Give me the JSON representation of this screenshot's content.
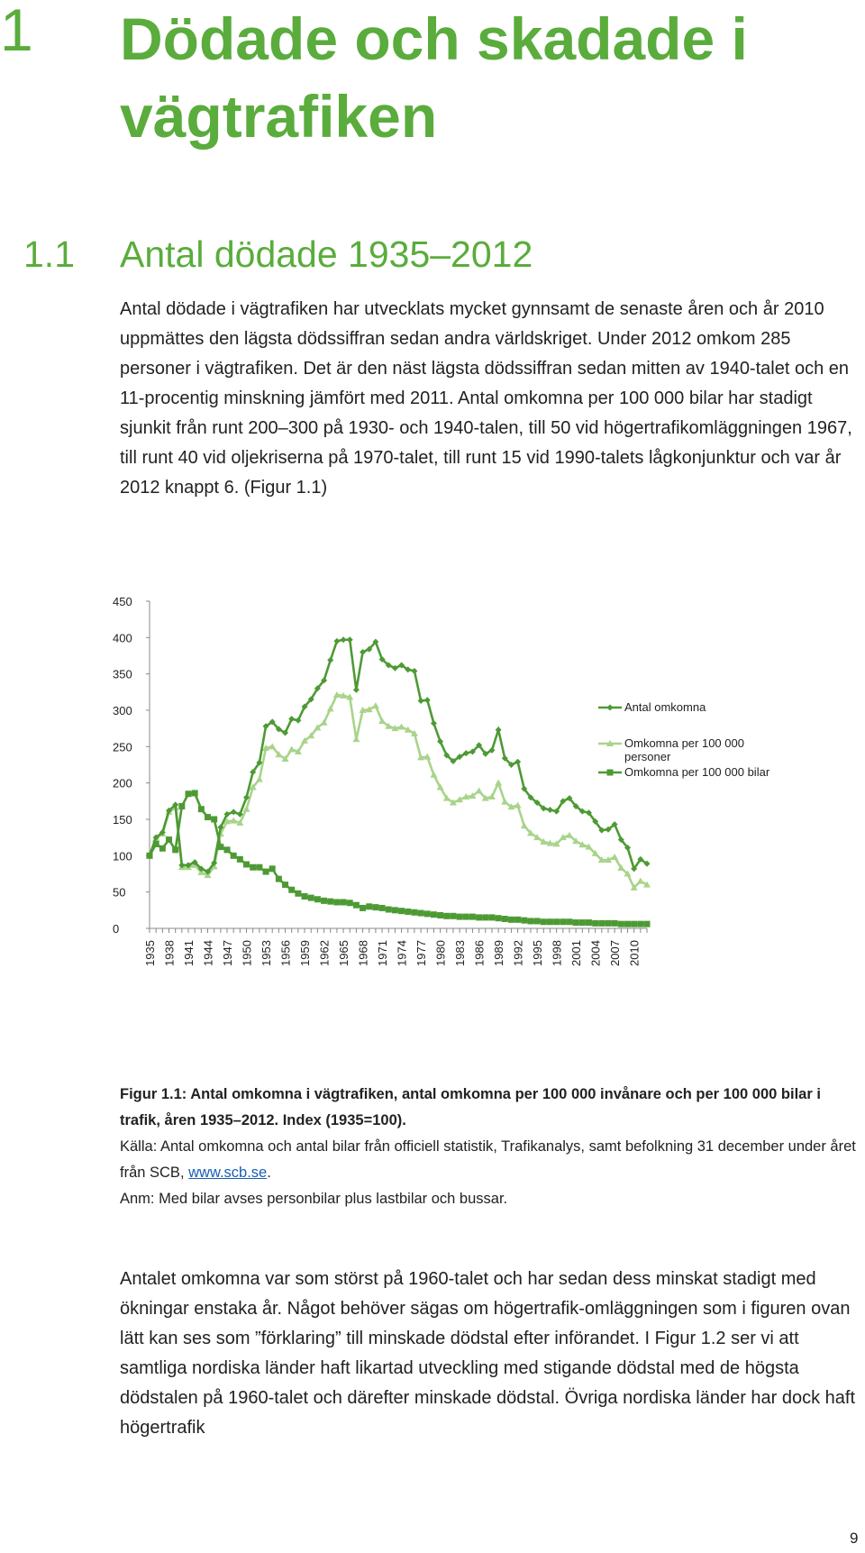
{
  "chapter": {
    "number": "1",
    "title": "Dödade och skadade i vägtrafiken"
  },
  "section": {
    "number": "1.1",
    "title": "Antal dödade 1935–2012"
  },
  "paragraph1": "Antal dödade i vägtrafiken har utvecklats mycket gynnsamt de senaste åren och år 2010 uppmättes den lägsta dödssiffran sedan andra världskriget. Under 2012 omkom 285 personer i vägtrafiken. Det är den näst lägsta dödssiffran sedan mitten av 1940-talet och en 11-procentig minskning jämfört med 2011. Antal omkomna per 100 000 bilar har stadigt sjunkit från runt 200–300 på 1930- och 1940-talen, till 50 vid högertrafikomläggningen 1967, till runt 40 vid oljekriserna på 1970-talet, till runt 15 vid 1990-talets lågkonjunktur och var år 2012 knappt 6. (Figur 1.1)",
  "chart_data": {
    "type": "line",
    "title": "",
    "xlabel": "",
    "ylabel": "",
    "ylim": [
      0,
      450
    ],
    "yticks": [
      "0",
      "50",
      "100",
      "150",
      "200",
      "250",
      "300",
      "350",
      "400",
      "450"
    ],
    "xtick_labels": [
      "1935",
      "1938",
      "1941",
      "1944",
      "1947",
      "1950",
      "1953",
      "1956",
      "1959",
      "1962",
      "1965",
      "1968",
      "1971",
      "1974",
      "1977",
      "1980",
      "1983",
      "1986",
      "1989",
      "1992",
      "1995",
      "1998",
      "2001",
      "2004",
      "2007",
      "2010"
    ],
    "x_start": 1935,
    "x_end": 2012,
    "grid": false,
    "legend_position": "right",
    "series": [
      {
        "name": "Antal omkomna",
        "color": "#4d9a34",
        "marker": "diamond",
        "values": [
          100,
          125,
          132,
          162,
          170,
          87,
          87,
          91,
          82,
          78,
          90,
          139,
          157,
          160,
          157,
          180,
          215,
          228,
          278,
          284,
          274,
          269,
          288,
          286,
          305,
          315,
          330,
          341,
          369,
          395,
          397,
          397,
          328,
          380,
          384,
          394,
          370,
          362,
          358,
          362,
          356,
          354,
          313,
          314,
          282,
          257,
          238,
          230,
          236,
          241,
          243,
          252,
          240,
          245,
          273,
          234,
          225,
          229,
          192,
          180,
          173,
          165,
          163,
          161,
          175,
          179,
          168,
          161,
          159,
          147,
          135,
          136,
          143,
          122,
          111,
          82,
          95,
          89
        ]
      },
      {
        "name": "Omkomna per 100 000 personer",
        "color": "#a8d48a",
        "marker": "triangle",
        "values": [
          100,
          124,
          130,
          160,
          166,
          84,
          84,
          87,
          77,
          73,
          85,
          130,
          147,
          148,
          145,
          164,
          194,
          205,
          248,
          250,
          239,
          233,
          246,
          243,
          258,
          265,
          276,
          283,
          302,
          321,
          320,
          318,
          260,
          300,
          301,
          306,
          285,
          278,
          275,
          277,
          273,
          268,
          235,
          236,
          211,
          194,
          179,
          173,
          177,
          181,
          182,
          189,
          179,
          181,
          200,
          174,
          167,
          169,
          141,
          131,
          125,
          119,
          117,
          116,
          125,
          128,
          120,
          115,
          112,
          103,
          94,
          94,
          98,
          83,
          75,
          56,
          65,
          60
        ]
      },
      {
        "name": "Omkomna per 100 000 bilar",
        "color": "#4d9a34",
        "marker": "square",
        "values": [
          100,
          116,
          110,
          122,
          108,
          168,
          185,
          186,
          164,
          153,
          150,
          112,
          108,
          100,
          95,
          88,
          84,
          84,
          78,
          82,
          68,
          60,
          53,
          48,
          44,
          42,
          40,
          38,
          37,
          36,
          36,
          35,
          32,
          28,
          30,
          29,
          28,
          26,
          25,
          24,
          23,
          22,
          21,
          20,
          19,
          18,
          17,
          17,
          16,
          16,
          16,
          15,
          15,
          15,
          14,
          13,
          12,
          12,
          11,
          10,
          10,
          9,
          9,
          9,
          9,
          9,
          8,
          8,
          8,
          7,
          7,
          7,
          7,
          6,
          6,
          6,
          6,
          6
        ]
      }
    ]
  },
  "caption": {
    "title": "Figur 1.1: Antal omkomna i vägtrafiken, antal omkomna per 100 000 invånare och per 100 000 bilar i trafik, åren 1935–2012. Index (1935=100).",
    "source_text": "Källa: Antal omkomna och antal bilar från officiell statistik, Trafikanalys, samt befolkning 31 december under året från SCB, ",
    "source_link": "www.scb.se",
    "source_end": ".",
    "note": "Anm: Med bilar avses personbilar plus lastbilar och bussar."
  },
  "paragraph2": "Antalet omkomna var som störst på 1960-talet och har sedan dess minskat stadigt med ökningar enstaka år. Något behöver sägas om högertrafik-omläggningen som i figuren ovan lätt kan ses som ”förklaring” till minskade dödstal efter införandet. I Figur 1.2 ser vi att samtliga nordiska länder haft likartad utveckling med stigande dödstal med de högsta dödstalen på 1960-talet och därefter minskade dödstal. Övriga nordiska länder har dock haft högertrafik",
  "page_number": "9"
}
